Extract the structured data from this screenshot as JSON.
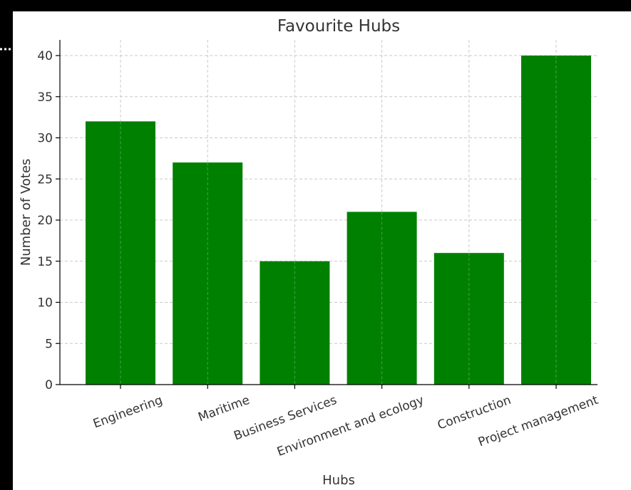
{
  "chart_data": {
    "type": "bar",
    "title": "Favourite Hubs",
    "xlabel": "Hubs",
    "ylabel": "Number of Votes",
    "categories": [
      "Engineering",
      "Maritime",
      "Business Services",
      "Environment and ecology",
      "Construction",
      "Project management"
    ],
    "values": [
      32,
      27,
      15,
      21,
      16,
      40
    ],
    "ylim": [
      0,
      42
    ],
    "yticks": [
      0,
      5,
      10,
      15,
      20,
      25,
      30,
      35,
      40
    ],
    "grid": true,
    "x_tick_rotation_deg": -20,
    "bar_color": "#008000"
  },
  "colors": {
    "frame_border": "#000000",
    "background": "#ffffff",
    "text": "#333333"
  }
}
